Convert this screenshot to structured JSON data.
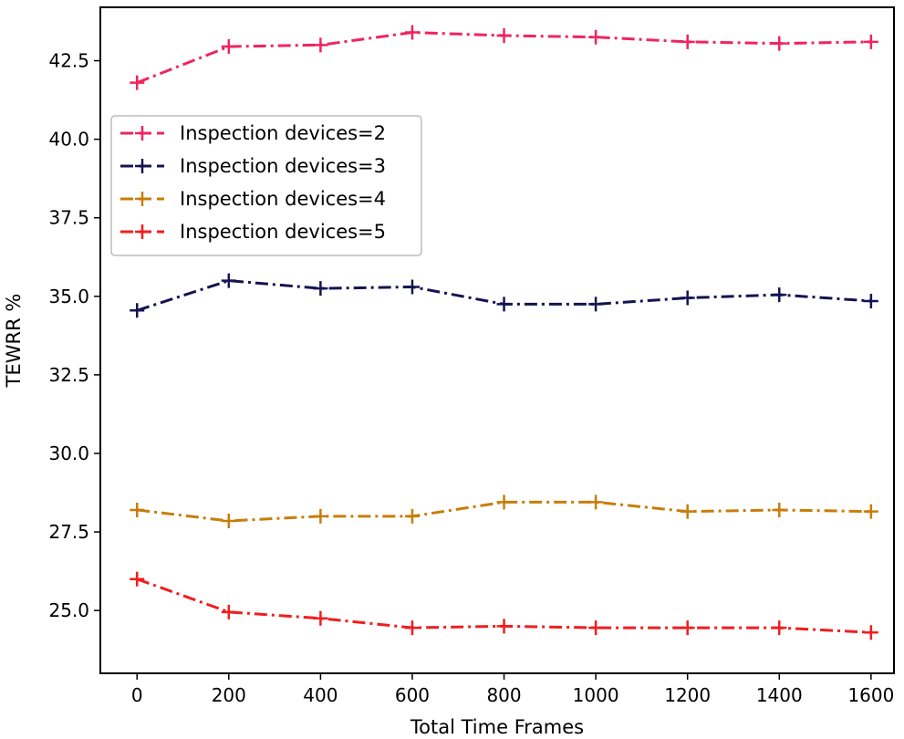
{
  "chart_data": {
    "type": "line",
    "title": "",
    "xlabel": "Total Time Frames",
    "ylabel": "TEWRR %",
    "x": [
      0,
      200,
      400,
      600,
      800,
      1000,
      1200,
      1400,
      1600
    ],
    "xlim": [
      -80,
      1650
    ],
    "ylim": [
      23.0,
      44.2
    ],
    "xticks": [
      0,
      200,
      400,
      600,
      800,
      1000,
      1200,
      1400,
      1600
    ],
    "xtick_labels": [
      "0",
      "200",
      "400",
      "600",
      "800",
      "1000",
      "1200",
      "1400",
      "1600"
    ],
    "yticks": [
      25.0,
      27.5,
      30.0,
      32.5,
      35.0,
      37.5,
      40.0,
      42.5
    ],
    "ytick_labels": [
      "25.0",
      "27.5",
      "30.0",
      "32.5",
      "35.0",
      "37.5",
      "40.0",
      "42.5"
    ],
    "grid": false,
    "legend_position": "center-left",
    "line_style": "dash-dot",
    "marker": "+",
    "series": [
      {
        "name": "Inspection devices=2",
        "color": "#f0245e",
        "values": [
          41.8,
          42.95,
          43.0,
          43.4,
          43.3,
          43.25,
          43.1,
          43.05,
          43.1
        ]
      },
      {
        "name": "Inspection devices=3",
        "color": "#141450",
        "values": [
          34.55,
          35.5,
          35.25,
          35.3,
          34.75,
          34.75,
          34.95,
          35.05,
          34.85
        ]
      },
      {
        "name": "Inspection devices=4",
        "color": "#c87d0a",
        "values": [
          28.2,
          27.85,
          28.0,
          28.0,
          28.45,
          28.45,
          28.15,
          28.2,
          28.15
        ]
      },
      {
        "name": "Inspection devices=5",
        "color": "#f01e1e",
        "values": [
          26.0,
          24.95,
          24.75,
          24.45,
          24.5,
          24.45,
          24.45,
          24.45,
          24.3
        ]
      }
    ]
  }
}
